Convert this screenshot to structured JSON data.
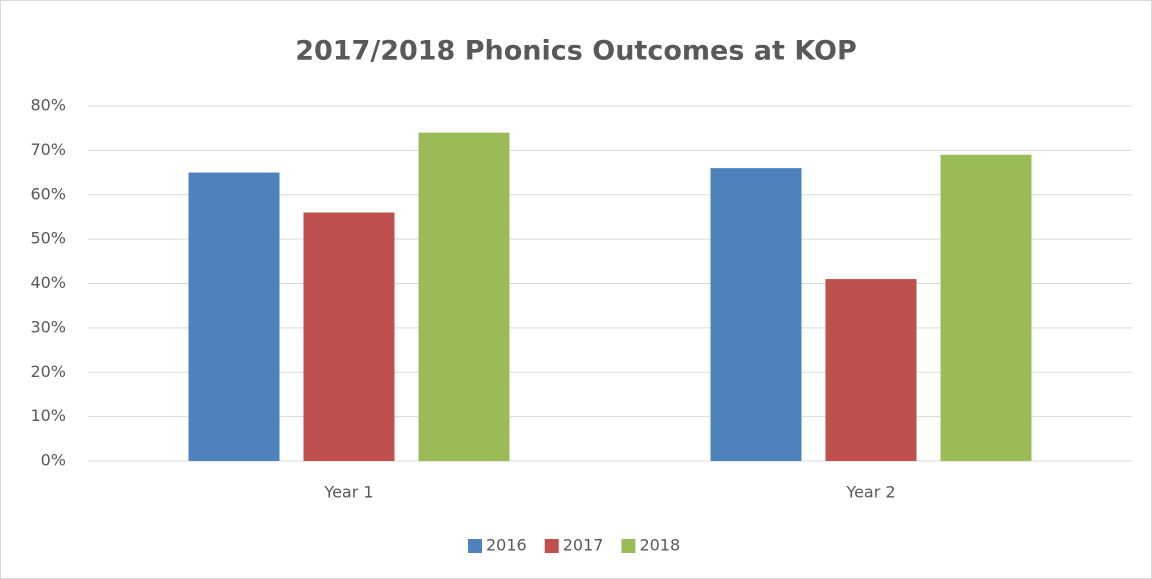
{
  "chart_data": {
    "type": "bar",
    "title": "2017/2018 Phonics Outcomes at KOP",
    "categories": [
      "Year 1",
      "Year 2"
    ],
    "series": [
      {
        "name": "2016",
        "color": "#4f81bd",
        "values": [
          65,
          66
        ]
      },
      {
        "name": "2017",
        "color": "#c0504d",
        "values": [
          56,
          41
        ]
      },
      {
        "name": "2018",
        "color": "#9bbb59",
        "values": [
          74,
          69
        ]
      }
    ],
    "ylim": [
      0,
      80
    ],
    "yticks": [
      {
        "value": 0,
        "label": "0%"
      },
      {
        "value": 10,
        "label": "10%"
      },
      {
        "value": 20,
        "label": "20%"
      },
      {
        "value": 30,
        "label": "30%"
      },
      {
        "value": 40,
        "label": "40%"
      },
      {
        "value": 50,
        "label": "50%"
      },
      {
        "value": 60,
        "label": "60%"
      },
      {
        "value": 70,
        "label": "70%"
      },
      {
        "value": 80,
        "label": "80%"
      }
    ],
    "grid": true,
    "legend": "bottom"
  }
}
